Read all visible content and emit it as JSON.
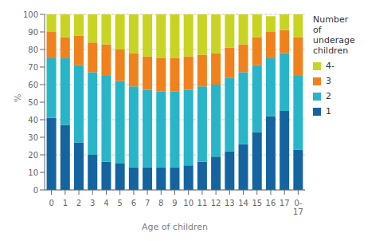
{
  "chart_data": {
    "type": "bar",
    "stacked": true,
    "categories": [
      "0",
      "1",
      "2",
      "3",
      "4",
      "5",
      "6",
      "7",
      "8",
      "9",
      "10",
      "11",
      "12",
      "13",
      "14",
      "15",
      "16",
      "17",
      "0-\n17"
    ],
    "series": [
      {
        "name": "1",
        "color": "#1464a0",
        "values": [
          41,
          37,
          27,
          20,
          16,
          15,
          13,
          13,
          13,
          13,
          14,
          16,
          19,
          22,
          26,
          33,
          42,
          45,
          23
        ]
      },
      {
        "name": "2",
        "color": "#28b5c8",
        "values": [
          34,
          38,
          44,
          47,
          49,
          47,
          46,
          44,
          43,
          43,
          43,
          43,
          41,
          42,
          41,
          38,
          33,
          33,
          42
        ]
      },
      {
        "name": "3",
        "color": "#f0821e",
        "values": [
          15,
          12,
          17,
          17,
          18,
          18,
          19,
          19,
          19,
          19,
          19,
          18,
          18,
          17,
          16,
          16,
          15,
          13,
          22
        ]
      },
      {
        "name": "4-",
        "color": "#c8d422",
        "values": [
          10,
          13,
          12,
          16,
          17,
          20,
          22,
          24,
          25,
          25,
          24,
          23,
          22,
          19,
          17,
          13,
          9,
          9,
          13
        ]
      }
    ],
    "xlabel": "Age of children",
    "ylabel": "%",
    "ylim": [
      0,
      100
    ],
    "yticks": [
      0,
      10,
      20,
      30,
      40,
      50,
      60,
      70,
      80,
      90,
      100
    ],
    "grid": true,
    "legend": "right",
    "legend_title": "Number\nof\nunderage\nchildren"
  }
}
